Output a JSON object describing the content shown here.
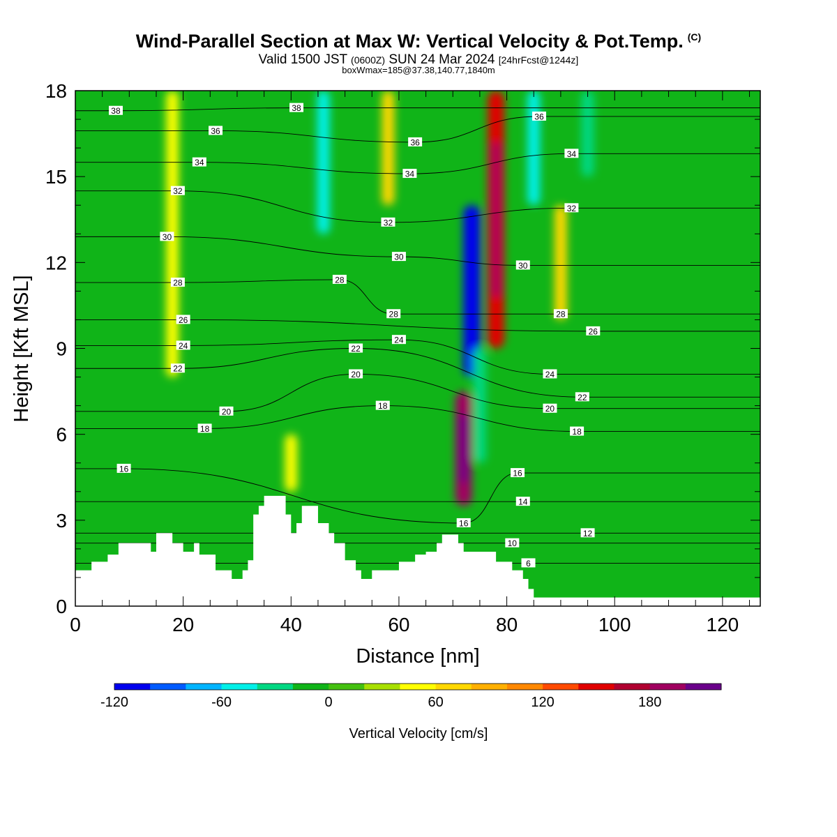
{
  "title": {
    "main": "Wind-Parallel Section at Max W: Vertical Velocity & Pot.Temp.",
    "copyright": "(C)",
    "valid_prefix": "Valid 1500 JST",
    "valid_utc": "(0600Z)",
    "valid_date": "SUN 24 Mar 2024",
    "forecast": "[24hrFcst@1244z]",
    "boxinfo": "boxWmax=185@37.38,140.77,1840m"
  },
  "chart_data": {
    "type": "heatmap",
    "xlabel": "Distance [nm]",
    "ylabel": "Height [Kft MSL]",
    "xlim": [
      0,
      127
    ],
    "ylim": [
      0,
      18
    ],
    "xticks": [
      0,
      20,
      40,
      60,
      80,
      100,
      120
    ],
    "yticks": [
      0,
      3,
      6,
      9,
      12,
      15,
      18
    ],
    "colorbar": {
      "label": "Vertical Velocity [cm/s]",
      "min": -120,
      "max": 220,
      "step": 20,
      "tick_values": [
        -120,
        -60,
        0,
        60,
        120,
        180
      ],
      "colors": [
        "#0000ee",
        "#005bff",
        "#00b4ff",
        "#00f0e8",
        "#00d882",
        "#10b418",
        "#44c010",
        "#a8e000",
        "#ffff00",
        "#ffd800",
        "#ffb000",
        "#ff8800",
        "#ff4a00",
        "#e00000",
        "#b00030",
        "#a00060",
        "#6a008a"
      ]
    },
    "velocity_features": [
      {
        "x": 72,
        "z_min": 3.5,
        "z_max": 7.5,
        "w": 180
      },
      {
        "x": 78,
        "z_min": 9,
        "z_max": 18,
        "w": 150
      },
      {
        "x": 73.5,
        "z_min": 8,
        "z_max": 14,
        "w": -120
      },
      {
        "x": 58,
        "z_min": 14,
        "z_max": 18,
        "w": 60
      },
      {
        "x": 46,
        "z_min": 13,
        "z_max": 18,
        "w": -60
      },
      {
        "x": 90,
        "z_min": 10,
        "z_max": 14,
        "w": 60
      },
      {
        "x": 75,
        "z_min": 5,
        "z_max": 9,
        "w": -40
      },
      {
        "x": 85,
        "z_min": 14,
        "z_max": 18,
        "w": -50
      },
      {
        "x": 95,
        "z_min": 15,
        "z_max": 18,
        "w": -40
      },
      {
        "x": 18,
        "z_min": 8,
        "z_max": 18,
        "w": 40
      },
      {
        "x": 40,
        "z_min": 4,
        "z_max": 6,
        "w": 40
      }
    ],
    "terrain": [
      [
        0,
        1.25
      ],
      [
        3,
        1.55
      ],
      [
        6,
        1.8
      ],
      [
        8,
        2.2
      ],
      [
        13,
        2.2
      ],
      [
        14,
        1.9
      ],
      [
        15,
        2.55
      ],
      [
        17,
        2.55
      ],
      [
        18,
        2.2
      ],
      [
        19,
        2.2
      ],
      [
        20,
        1.9
      ],
      [
        22,
        2.2
      ],
      [
        23,
        1.8
      ],
      [
        26,
        1.25
      ],
      [
        29,
        0.95
      ],
      [
        31,
        1.25
      ],
      [
        32,
        1.6
      ],
      [
        33,
        3.2
      ],
      [
        34,
        3.5
      ],
      [
        35,
        3.85
      ],
      [
        38,
        3.85
      ],
      [
        39,
        3.2
      ],
      [
        40,
        2.55
      ],
      [
        41,
        2.9
      ],
      [
        42,
        3.5
      ],
      [
        44,
        3.5
      ],
      [
        45,
        2.9
      ],
      [
        46,
        2.9
      ],
      [
        47,
        2.55
      ],
      [
        48,
        2.2
      ],
      [
        50,
        1.6
      ],
      [
        52,
        1.25
      ],
      [
        53,
        0.95
      ],
      [
        55,
        1.25
      ],
      [
        59,
        1.25
      ],
      [
        60,
        1.55
      ],
      [
        63,
        1.8
      ],
      [
        65,
        1.9
      ],
      [
        67,
        2.2
      ],
      [
        68,
        2.5
      ],
      [
        70,
        2.5
      ],
      [
        71,
        2.2
      ],
      [
        72,
        1.9
      ],
      [
        76,
        1.9
      ],
      [
        78,
        1.55
      ],
      [
        81,
        1.25
      ],
      [
        83,
        0.95
      ],
      [
        84,
        0.6
      ],
      [
        85,
        0.3
      ],
      [
        127,
        0.3
      ]
    ],
    "theta_contours": [
      {
        "value": 6,
        "label_x": 84,
        "label_z": 1.5
      },
      {
        "value": 10,
        "label_x": 81,
        "label_z": 2.2
      },
      {
        "value": 12,
        "label_x": 95,
        "label_z": 2.55
      },
      {
        "value": 14,
        "label_x": 83,
        "label_z": 3.65
      },
      {
        "value": 16,
        "label_x": 72,
        "label_z": 2.9
      },
      {
        "value": 16,
        "label_x": 9,
        "label_z": 4.8
      },
      {
        "value": 16,
        "label_x": 82,
        "label_z": 4.65
      },
      {
        "value": 18,
        "label_x": 24,
        "label_z": 6.2
      },
      {
        "value": 18,
        "label_x": 57,
        "label_z": 7.0
      },
      {
        "value": 18,
        "label_x": 93,
        "label_z": 6.1
      },
      {
        "value": 20,
        "label_x": 28,
        "label_z": 6.8
      },
      {
        "value": 20,
        "label_x": 52,
        "label_z": 8.1
      },
      {
        "value": 20,
        "label_x": 88,
        "label_z": 6.9
      },
      {
        "value": 22,
        "label_x": 19,
        "label_z": 8.3
      },
      {
        "value": 22,
        "label_x": 52,
        "label_z": 9.0
      },
      {
        "value": 22,
        "label_x": 94,
        "label_z": 7.3
      },
      {
        "value": 24,
        "label_x": 20,
        "label_z": 9.1
      },
      {
        "value": 24,
        "label_x": 60,
        "label_z": 9.3
      },
      {
        "value": 24,
        "label_x": 88,
        "label_z": 8.1
      },
      {
        "value": 26,
        "label_x": 20,
        "label_z": 10.0
      },
      {
        "value": 26,
        "label_x": 96,
        "label_z": 9.6
      },
      {
        "value": 28,
        "label_x": 19,
        "label_z": 11.3
      },
      {
        "value": 28,
        "label_x": 49,
        "label_z": 11.4
      },
      {
        "value": 28,
        "label_x": 59,
        "label_z": 10.2
      },
      {
        "value": 28,
        "label_x": 90,
        "label_z": 10.2
      },
      {
        "value": 30,
        "label_x": 17,
        "label_z": 12.9
      },
      {
        "value": 30,
        "label_x": 60,
        "label_z": 12.2
      },
      {
        "value": 30,
        "label_x": 83,
        "label_z": 11.9
      },
      {
        "value": 32,
        "label_x": 19,
        "label_z": 14.5
      },
      {
        "value": 32,
        "label_x": 58,
        "label_z": 13.4
      },
      {
        "value": 32,
        "label_x": 92,
        "label_z": 13.9
      },
      {
        "value": 34,
        "label_x": 23,
        "label_z": 15.5
      },
      {
        "value": 34,
        "label_x": 62,
        "label_z": 15.1
      },
      {
        "value": 34,
        "label_x": 92,
        "label_z": 15.8
      },
      {
        "value": 36,
        "label_x": 26,
        "label_z": 16.6
      },
      {
        "value": 36,
        "label_x": 63,
        "label_z": 16.2
      },
      {
        "value": 36,
        "label_x": 86,
        "label_z": 17.1
      },
      {
        "value": 38,
        "label_x": 7.5,
        "label_z": 17.3
      },
      {
        "value": 38,
        "label_x": 41,
        "label_z": 17.4
      }
    ]
  }
}
